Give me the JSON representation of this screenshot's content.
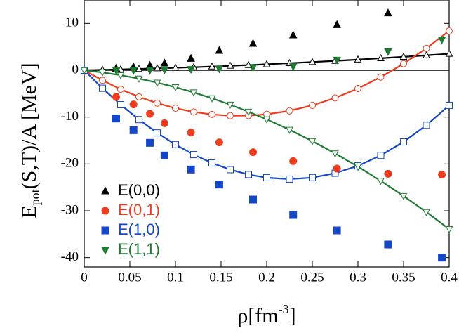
{
  "chart_data": {
    "type": "scatter",
    "ylabel": {
      "main": "E",
      "sub": "pot",
      "rest": "(S,T)/A [MeV]"
    },
    "xlabel": {
      "main": "ρ[fm",
      "sup": "-3",
      "end": "]"
    },
    "xlim": [
      0,
      0.4
    ],
    "xticks": [
      0,
      0.05,
      0.1,
      0.15,
      0.2,
      0.25,
      0.3,
      0.35,
      0.4
    ],
    "ylim": [
      -42,
      15
    ],
    "yticks": [
      -40,
      -30,
      -20,
      -10,
      0,
      10
    ],
    "legend": "lower left",
    "x": [
      0.035,
      0.054,
      0.072,
      0.088,
      0.117,
      0.148,
      0.185,
      0.229,
      0.277,
      0.333,
      0.392
    ],
    "series": [
      {
        "name": "E(0,0)",
        "color": "#000000",
        "marker": "triangle-up",
        "values": [
          0.4,
          0.7,
          1,
          1.5,
          2.5,
          4.2,
          5.7,
          7.5,
          9.7,
          12.2,
          null
        ]
      },
      {
        "name": "E(0,1)",
        "color": "#f03c1e",
        "marker": "circle",
        "values": [
          -5.7,
          -7.3,
          -9.3,
          -11.3,
          -13.3,
          -15.4,
          -17.5,
          -19.4,
          -21,
          -22.1,
          -22.3
        ]
      },
      {
        "name": "E(1,0)",
        "color": "#1446c8",
        "marker": "square",
        "values": [
          -10.3,
          -12.8,
          -15.5,
          -18.2,
          -21.2,
          -24.4,
          -27.6,
          -30.9,
          -34.2,
          -37.2,
          -40
        ]
      },
      {
        "name": "E(1,1)",
        "color": "#1e7a32",
        "marker": "triangle-down",
        "values": [
          0,
          0,
          0,
          0.1,
          0.2,
          0.3,
          0.6,
          0.8,
          2.2,
          4,
          6.5
        ]
      }
    ],
    "fit_x": [
      0,
      0.02,
      0.04,
      0.06,
      0.08,
      0.1,
      0.12,
      0.14,
      0.16,
      0.18,
      0.2,
      0.225,
      0.25,
      0.275,
      0.3,
      0.325,
      0.35,
      0.375,
      0.4
    ],
    "fits": [
      {
        "color": "#000000",
        "marker": "triangle-up",
        "values": [
          0,
          0.085,
          0.18,
          0.28,
          0.4,
          0.52,
          0.65,
          0.8,
          0.95,
          1.11,
          1.28,
          1.51,
          1.75,
          2.01,
          2.28,
          2.57,
          2.87,
          3.19,
          3.52
        ]
      },
      {
        "color": "#f03c1e",
        "marker": "circle",
        "values": [
          0,
          -2.16,
          -4.06,
          -5.68,
          -7.02,
          -8.1,
          -8.9,
          -9.44,
          -9.7,
          -9.68,
          -9.4,
          -8.66,
          -7.5,
          -5.91,
          -3.9,
          -1.46,
          1.4,
          4.69,
          8.4
        ]
      },
      {
        "color": "#1446c8",
        "marker": "square",
        "values": [
          0,
          -3.84,
          -7.35,
          -10.53,
          -13.37,
          -15.87,
          -18.01,
          -19.8,
          -21.22,
          -22.26,
          -22.94,
          -23.24,
          -22.92,
          -21.98,
          -20.41,
          -18.18,
          -15.3,
          -11.74,
          -7.49
        ]
      },
      {
        "color": "#1e7a32",
        "marker": "triangle-down",
        "values": [
          0,
          -0.47,
          -1.06,
          -1.78,
          -2.64,
          -3.62,
          -4.73,
          -5.98,
          -7.35,
          -8.85,
          -10.48,
          -12.7,
          -15.13,
          -17.75,
          -20.58,
          -23.61,
          -26.85,
          -30.28,
          -33.92
        ]
      }
    ]
  }
}
